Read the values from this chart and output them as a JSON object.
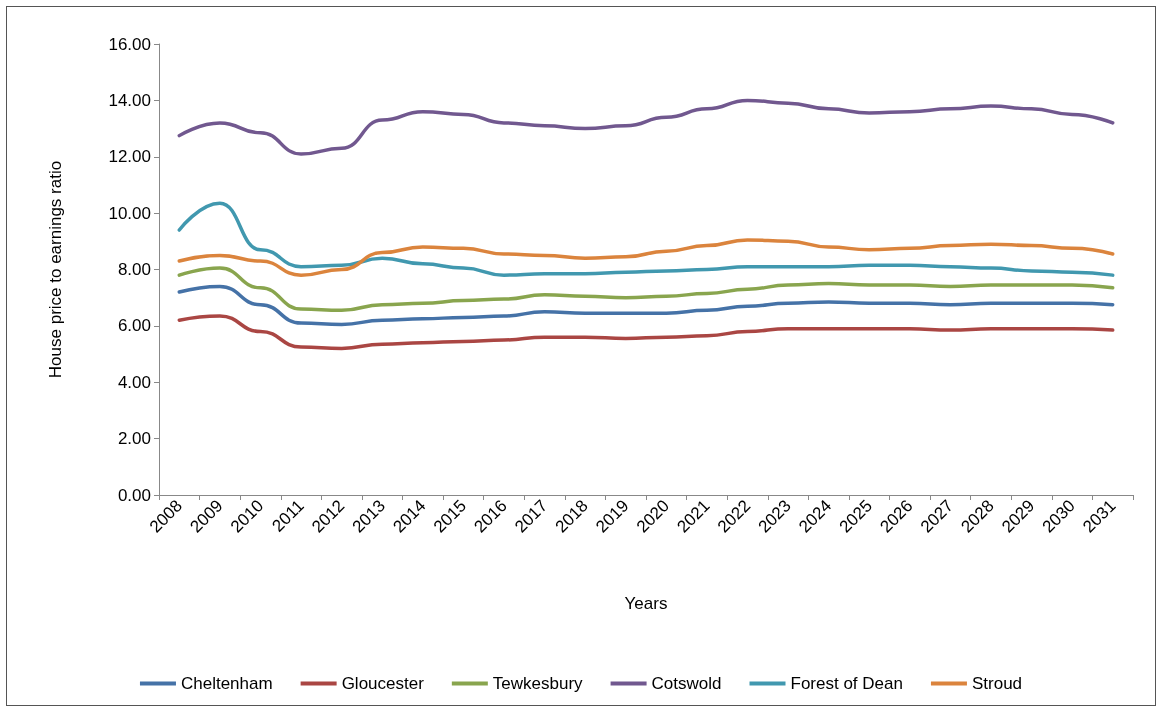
{
  "chart_data": {
    "type": "line",
    "xlabel": "Years",
    "ylabel": "House price to earnings ratio",
    "categories": [
      "2008",
      "2009",
      "2010",
      "2011",
      "2012",
      "2013",
      "2014",
      "2015",
      "2016",
      "2017",
      "2018",
      "2019",
      "2020",
      "2021",
      "2022",
      "2023",
      "2024",
      "2025",
      "2026",
      "2027",
      "2028",
      "2029",
      "2030",
      "2031"
    ],
    "series": [
      {
        "name": "Cheltenham",
        "color": "#4572a7",
        "values": [
          7.2,
          7.4,
          6.75,
          6.1,
          6.05,
          6.2,
          6.25,
          6.3,
          6.35,
          6.5,
          6.45,
          6.45,
          6.45,
          6.55,
          6.7,
          6.8,
          6.85,
          6.8,
          6.8,
          6.75,
          6.8,
          6.8,
          6.8,
          6.75
        ]
      },
      {
        "name": "Gloucester",
        "color": "#aa4643",
        "values": [
          6.2,
          6.35,
          5.8,
          5.25,
          5.2,
          5.35,
          5.4,
          5.45,
          5.5,
          5.6,
          5.6,
          5.55,
          5.6,
          5.65,
          5.8,
          5.9,
          5.9,
          5.9,
          5.9,
          5.85,
          5.9,
          5.9,
          5.9,
          5.85
        ]
      },
      {
        "name": "Tewkesbury",
        "color": "#89a54e",
        "values": [
          7.8,
          8.05,
          7.35,
          6.6,
          6.55,
          6.75,
          6.8,
          6.9,
          6.95,
          7.1,
          7.05,
          7.0,
          7.05,
          7.15,
          7.3,
          7.45,
          7.5,
          7.45,
          7.45,
          7.4,
          7.45,
          7.45,
          7.45,
          7.35
        ]
      },
      {
        "name": "Cotswold",
        "color": "#71588f",
        "values": [
          12.75,
          13.2,
          12.85,
          12.1,
          12.3,
          13.3,
          13.6,
          13.5,
          13.2,
          13.1,
          13.0,
          13.1,
          13.4,
          13.7,
          14.0,
          13.9,
          13.7,
          13.55,
          13.6,
          13.7,
          13.8,
          13.7,
          13.5,
          13.2
        ]
      },
      {
        "name": "Forest of Dean",
        "color": "#4198af",
        "values": [
          9.4,
          10.35,
          8.7,
          8.1,
          8.15,
          8.4,
          8.2,
          8.05,
          7.8,
          7.85,
          7.85,
          7.9,
          7.95,
          8.0,
          8.1,
          8.1,
          8.1,
          8.15,
          8.15,
          8.1,
          8.05,
          7.95,
          7.9,
          7.8
        ]
      },
      {
        "name": "Stroud",
        "color": "#db843d",
        "values": [
          8.3,
          8.5,
          8.3,
          7.8,
          8.0,
          8.6,
          8.8,
          8.75,
          8.55,
          8.5,
          8.4,
          8.45,
          8.65,
          8.85,
          9.05,
          9.0,
          8.8,
          8.7,
          8.75,
          8.85,
          8.9,
          8.85,
          8.75,
          8.55
        ]
      }
    ],
    "ylim": [
      0,
      16
    ],
    "yticks": [
      {
        "value": 0,
        "label": "0.00"
      },
      {
        "value": 2,
        "label": "2.00"
      },
      {
        "value": 4,
        "label": "4.00"
      },
      {
        "value": 6,
        "label": "6.00"
      },
      {
        "value": 8,
        "label": "8.00"
      },
      {
        "value": 10,
        "label": "10.00"
      },
      {
        "value": 12,
        "label": "12.00"
      },
      {
        "value": 14,
        "label": "14.00"
      },
      {
        "value": 16,
        "label": "16.00"
      }
    ],
    "grid": false,
    "legend": "bottom",
    "marker": "none",
    "line_style": "solid"
  }
}
